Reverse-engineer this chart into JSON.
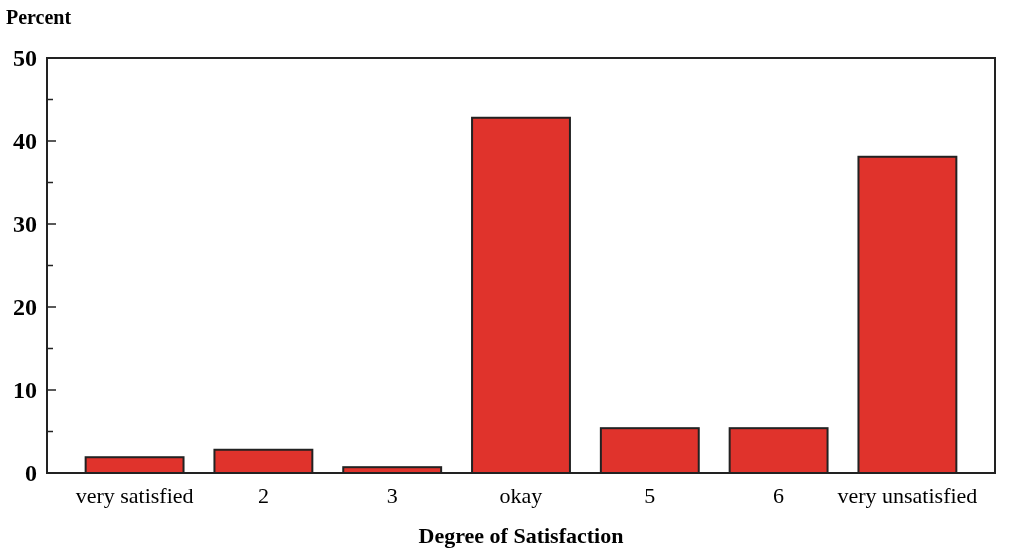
{
  "chart_data": {
    "type": "bar",
    "ylabel": "Percent",
    "xlabel": "Degree of Satisfaction",
    "categories": [
      "very satisfied",
      "2",
      "3",
      "okay",
      "5",
      "6",
      "very unsatisfied"
    ],
    "values": [
      1.9,
      2.8,
      0.7,
      42.8,
      5.4,
      5.4,
      38.1
    ],
    "color": "#e0332c",
    "ylim": [
      0,
      50
    ],
    "yticks": [
      0,
      {
        "value": 5,
        "label": null
      },
      10,
      {
        "value": 15,
        "label": null
      },
      20,
      {
        "value": 25,
        "label": null
      },
      30,
      {
        "value": 35,
        "label": null
      },
      40,
      {
        "value": 45,
        "label": null
      },
      50
    ],
    "grid": false
  }
}
